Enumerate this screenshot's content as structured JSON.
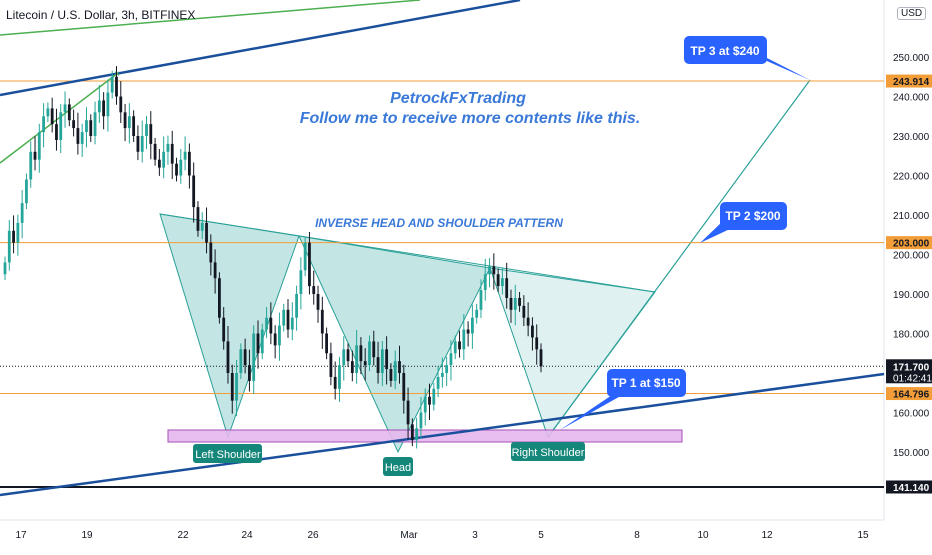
{
  "header": {
    "symbol": "Litecoin / U.S. Dollar, 3h, BITFINEX",
    "currency": "USD"
  },
  "colors": {
    "bull": "#26a69a",
    "bear": "#131722",
    "orange": "#f29d38",
    "trend_blue": "#1a4f9c",
    "green": "#4caf50",
    "pattern_line": "#2aa198",
    "pattern_fill": "rgba(42,161,152,0.15)",
    "label_blue": "#2962ff",
    "label_teal": "#15877a",
    "title_blue": "#3a79d8",
    "zone_fill": "#e6b8ef",
    "zone_stroke": "#9c3fb0"
  },
  "annotations": {
    "brand": "PetrockFxTrading",
    "follow": "Follow me to receive more contents like this.",
    "pattern_title": "INVERSE HEAD AND SHOULDER PATTERN",
    "tp3": "TP 3 at $240",
    "tp2": "TP 2 $200",
    "tp1": "TP 1 at $150",
    "left_shoulder": "Left Shoulder",
    "head": "Head",
    "right_shoulder": "Right Shoulder"
  },
  "chart_data": {
    "type": "candlestick",
    "x_tick_labels": [
      "17",
      "19",
      "22",
      "24",
      "26",
      "Mar",
      "3",
      "5",
      "8",
      "10",
      "12",
      "15"
    ],
    "y_tick_labels": [
      "250.000",
      "240.000",
      "230.000",
      "220.000",
      "210.000",
      "200.000",
      "190.000",
      "180.000",
      "170.000",
      "160.000",
      "150.000"
    ],
    "y_range": [
      134,
      262
    ],
    "price_lines": [
      {
        "value": 243.914,
        "label": "243.914",
        "color": "orange"
      },
      {
        "value": 203.0,
        "label": "203.000",
        "color": "orange"
      },
      {
        "value": 171.7,
        "label": "171.700",
        "sublabel": "01:42:41",
        "color": "black"
      },
      {
        "value": 164.796,
        "label": "164.796",
        "color": "orange"
      },
      {
        "value": 141.14,
        "label": "141.140",
        "color": "black"
      }
    ],
    "ohlc_closes": [
      198,
      206,
      203,
      208,
      213,
      219,
      226,
      224,
      231,
      235,
      237,
      233,
      229,
      236,
      238,
      234,
      232,
      228,
      231,
      234,
      230,
      236,
      239,
      235,
      241,
      245,
      240,
      236,
      232,
      235,
      230,
      226,
      230,
      233,
      228,
      224,
      222,
      226,
      228,
      223,
      220,
      224,
      226,
      220,
      212,
      206,
      208,
      203,
      198,
      194,
      184,
      178,
      170,
      163,
      170,
      176,
      172,
      168,
      180,
      175,
      181,
      184,
      180,
      177,
      182,
      186,
      181,
      184,
      190,
      196,
      203,
      192,
      190,
      186,
      180,
      175,
      169,
      166,
      172,
      176,
      173,
      170,
      177,
      173,
      172,
      178,
      174,
      170,
      176,
      171,
      168,
      173,
      170,
      163,
      157,
      153,
      156,
      160,
      164,
      162,
      166,
      169,
      170,
      172,
      175,
      178,
      176,
      181,
      180,
      184,
      186,
      191,
      195,
      197,
      195,
      192,
      194,
      189,
      186,
      189,
      187,
      184,
      182,
      179,
      176,
      171.7
    ]
  }
}
